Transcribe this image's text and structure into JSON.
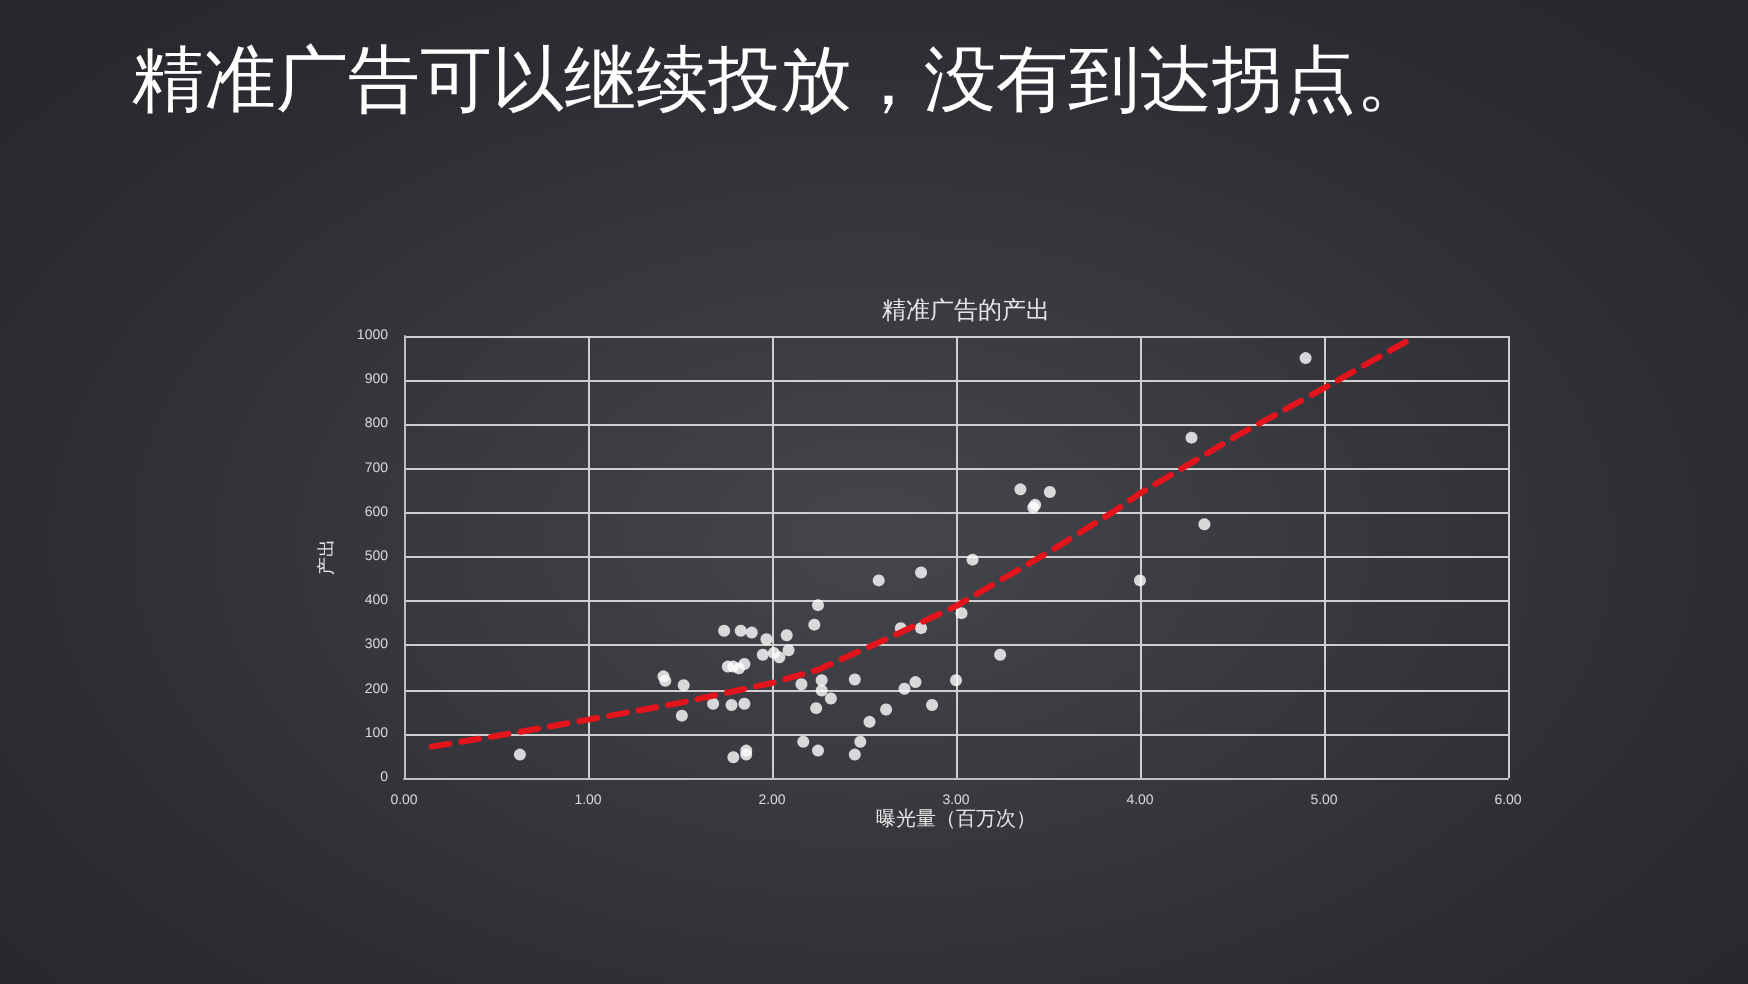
{
  "chart_data": {
    "type": "scatter",
    "title": "精准广告可以继续投放，没有到达拐点。",
    "subtitle": "精准广告的产出",
    "xlabel": "曝光量（百万次）",
    "ylabel": "产出",
    "xlim": [
      0,
      6
    ],
    "xticks": [
      {
        "value": 0,
        "label": "0.00"
      },
      {
        "value": 1,
        "label": "1.00"
      },
      {
        "value": 2,
        "label": "2.00"
      },
      {
        "value": 3,
        "label": "3.00"
      },
      {
        "value": 4,
        "label": "4.00"
      },
      {
        "value": 5,
        "label": "5.00"
      },
      {
        "value": 6,
        "label": "6.00"
      }
    ],
    "ylim": [
      0,
      1000
    ],
    "yticks": [
      0,
      100,
      200,
      300,
      400,
      500,
      600,
      700,
      800,
      900,
      1000
    ],
    "grid": true,
    "series": [
      {
        "color": "#ffffff",
        "marker": "circle",
        "x": [
          0.63,
          1.41,
          1.42,
          1.52,
          1.51,
          1.68,
          1.74,
          1.76,
          1.79,
          1.82,
          1.85,
          1.78,
          1.85,
          1.79,
          1.86,
          1.86,
          1.83,
          1.89,
          1.95,
          1.97,
          2.01,
          2.04,
          2.08,
          2.09,
          2.16,
          2.17,
          2.23,
          2.25,
          2.24,
          2.25,
          2.27,
          2.27,
          2.32,
          2.45,
          2.48,
          2.45,
          2.53,
          2.58,
          2.62,
          2.7,
          2.72,
          2.78,
          2.81,
          2.81,
          2.87,
          3.0,
          3.03,
          3.09,
          3.24,
          3.35,
          3.42,
          3.43,
          3.51,
          4.0,
          4.28,
          4.35,
          4.9
        ],
        "values": [
          53,
          230,
          220,
          210,
          141,
          168,
          333,
          252,
          252,
          248,
          258,
          165,
          168,
          47,
          62,
          53,
          333,
          329,
          279,
          314,
          283,
          273,
          323,
          289,
          212,
          82,
          347,
          391,
          158,
          62,
          198,
          221,
          180,
          223,
          82,
          53,
          127,
          447,
          155,
          339,
          202,
          217,
          465,
          339,
          165,
          221,
          373,
          494,
          279,
          653,
          612,
          618,
          647,
          447,
          770,
          574,
          950
        ]
      },
      {
        "type": "line",
        "color": "#e3141b",
        "marker": "none",
        "line_style": "dashed",
        "x": [
          0.15,
          0.5,
          1,
          1.5,
          2,
          2.25,
          2.62,
          3,
          3.5,
          3.85,
          4,
          4.5,
          5,
          5.5
        ],
        "values": [
          71,
          95,
          132,
          170,
          215,
          245,
          314,
          389,
          510,
          601,
          644,
          768,
          882,
          1000
        ]
      }
    ]
  }
}
